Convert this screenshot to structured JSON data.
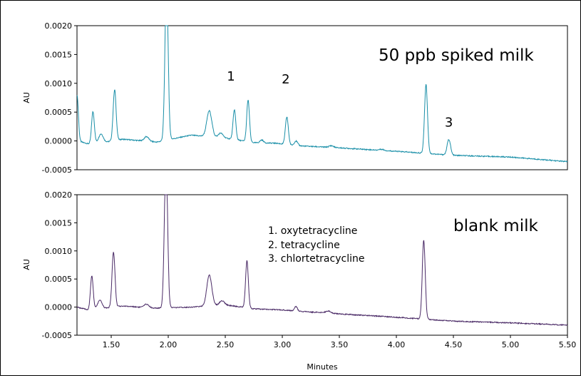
{
  "chart_data": [
    {
      "type": "line",
      "title": "50 ppb spiked milk",
      "xlabel": "",
      "ylabel": "AU",
      "xlim": [
        1.2,
        5.5
      ],
      "ylim": [
        -0.0005,
        0.002
      ],
      "yticks": [
        "0.0020",
        "0.0015",
        "0.0010",
        "0.0005",
        "0.0000",
        "-0.0005"
      ],
      "color": "#1a8fa8",
      "baseline": [
        [
          1.2,
          0.0
        ],
        [
          1.3,
          -5e-05
        ],
        [
          1.45,
          -2e-05
        ],
        [
          1.6,
          3e-05
        ],
        [
          1.9,
          -2e-05
        ],
        [
          2.2,
          0.0001
        ],
        [
          2.5,
          5e-05
        ],
        [
          2.75,
          -3e-05
        ],
        [
          2.95,
          -4e-05
        ],
        [
          3.1,
          -8e-05
        ],
        [
          3.5,
          -0.00012
        ],
        [
          4.0,
          -0.00018
        ],
        [
          4.5,
          -0.00025
        ],
        [
          5.0,
          -0.00028
        ],
        [
          5.5,
          -0.00036
        ]
      ],
      "peaks": [
        {
          "x": 1.2,
          "h": 0.0008,
          "w": 0.012
        },
        {
          "x": 1.34,
          "h": 0.00055,
          "w": 0.012
        },
        {
          "x": 1.41,
          "h": 0.00015,
          "w": 0.02
        },
        {
          "x": 1.53,
          "h": 0.00088,
          "w": 0.013
        },
        {
          "x": 1.81,
          "h": 8e-05,
          "w": 0.02
        },
        {
          "x": 1.985,
          "h": 0.0027,
          "w": 0.014
        },
        {
          "x": 2.36,
          "h": 0.00045,
          "w": 0.022
        },
        {
          "x": 2.46,
          "h": 8e-05,
          "w": 0.02
        },
        {
          "x": 2.58,
          "h": 0.00052,
          "w": 0.012
        },
        {
          "x": 2.7,
          "h": 0.00072,
          "w": 0.012
        },
        {
          "x": 2.82,
          "h": 5e-05,
          "w": 0.015
        },
        {
          "x": 3.04,
          "h": 0.00048,
          "w": 0.013
        },
        {
          "x": 3.12,
          "h": 8e-05,
          "w": 0.015
        },
        {
          "x": 3.43,
          "h": 3e-05,
          "w": 0.02
        },
        {
          "x": 3.87,
          "h": 2e-05,
          "w": 0.02
        },
        {
          "x": 4.26,
          "h": 0.0012,
          "w": 0.013
        },
        {
          "x": 4.46,
          "h": 0.00027,
          "w": 0.015
        }
      ],
      "annotations": [
        {
          "text": "1",
          "x": 2.55,
          "y": 0.00105
        },
        {
          "text": "2",
          "x": 3.03,
          "y": 0.001
        },
        {
          "text": "3",
          "x": 4.46,
          "y": 0.00025
        }
      ]
    },
    {
      "type": "line",
      "title": "blank milk",
      "xlabel": "Minutes",
      "ylabel": "AU",
      "xlim": [
        1.2,
        5.5
      ],
      "ylim": [
        -0.0005,
        0.002
      ],
      "yticks": [
        "0.0020",
        "0.0015",
        "0.0010",
        "0.0005",
        "0.0000",
        "-0.0005"
      ],
      "xticks": [
        "1.50",
        "2.00",
        "2.50",
        "3.00",
        "3.50",
        "4.00",
        "4.50",
        "5.00",
        "5.50"
      ],
      "color": "#4a2a66",
      "baseline": [
        [
          1.2,
          0.0
        ],
        [
          1.3,
          -5e-05
        ],
        [
          1.45,
          -2e-05
        ],
        [
          1.6,
          2e-05
        ],
        [
          1.9,
          -2e-05
        ],
        [
          2.2,
          0.0
        ],
        [
          2.5,
          4e-05
        ],
        [
          2.75,
          -3e-05
        ],
        [
          3.0,
          -5e-05
        ],
        [
          3.2,
          -8e-05
        ],
        [
          3.5,
          -0.00012
        ],
        [
          4.0,
          -0.00018
        ],
        [
          4.5,
          -0.00025
        ],
        [
          5.0,
          -0.00028
        ],
        [
          5.5,
          -0.00032
        ]
      ],
      "peaks": [
        {
          "x": 1.33,
          "h": 0.0006,
          "w": 0.012
        },
        {
          "x": 1.4,
          "h": 0.00015,
          "w": 0.02
        },
        {
          "x": 1.52,
          "h": 0.00098,
          "w": 0.013
        },
        {
          "x": 1.81,
          "h": 6e-05,
          "w": 0.02
        },
        {
          "x": 1.98,
          "h": 0.0027,
          "w": 0.014
        },
        {
          "x": 2.36,
          "h": 0.00055,
          "w": 0.022
        },
        {
          "x": 2.47,
          "h": 8e-05,
          "w": 0.02
        },
        {
          "x": 2.69,
          "h": 0.00084,
          "w": 0.012
        },
        {
          "x": 3.12,
          "h": 8e-05,
          "w": 0.012
        },
        {
          "x": 3.4,
          "h": 4e-05,
          "w": 0.02
        },
        {
          "x": 4.24,
          "h": 0.0014,
          "w": 0.013
        }
      ],
      "legend": [
        "1. oxytetracycline",
        "2. tetracycline",
        "3. chlortetracycline"
      ],
      "legend_position": "top-center"
    }
  ]
}
